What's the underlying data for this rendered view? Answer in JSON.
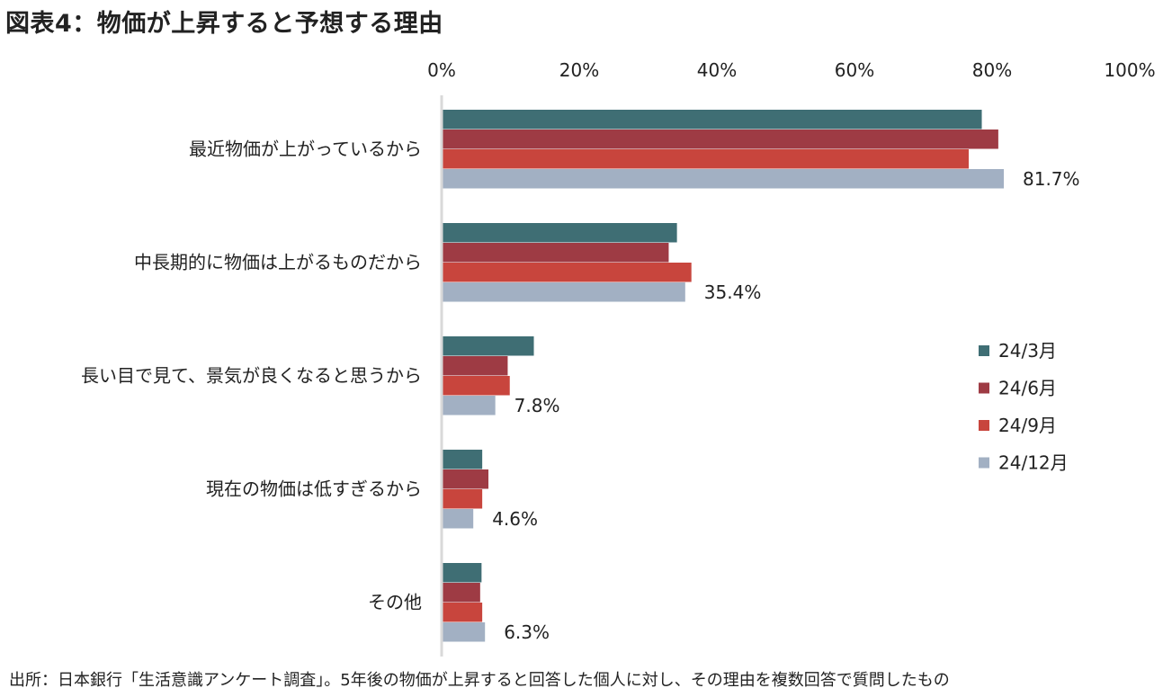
{
  "title": "図表4：物価が上昇すると予想する理由",
  "source": "出所：日本銀行「生活意識アンケート調査」。5年後の物価が上昇すると回答した個人に対し、その理由を複数回答で質問したもの",
  "chart_data": {
    "type": "bar",
    "orientation": "horizontal",
    "xlim": [
      0,
      100
    ],
    "ticks": [
      "0%",
      "20%",
      "40%",
      "60%",
      "80%",
      "100%"
    ],
    "tick_values": [
      0,
      20,
      40,
      60,
      80,
      100
    ],
    "axis_position": "top",
    "grid": false,
    "legend_position": "right",
    "categories": [
      "最近物価が上がっているから",
      "中長期的に物価は上がるものだから",
      "長い目で見て、景気が良くなると思うから",
      "現在の物価は低すぎるから",
      "その他"
    ],
    "series": [
      {
        "name": "24/3月",
        "color": "#3f6e74",
        "values": [
          78.5,
          34.2,
          13.4,
          5.9,
          5.8
        ]
      },
      {
        "name": "24/6月",
        "color": "#9e3b44",
        "values": [
          80.9,
          33.0,
          9.6,
          6.8,
          5.6
        ]
      },
      {
        "name": "24/9月",
        "color": "#c8453d",
        "values": [
          76.6,
          36.3,
          9.9,
          5.9,
          5.9
        ]
      },
      {
        "name": "24/12月",
        "color": "#a2b0c3",
        "values": [
          81.7,
          35.4,
          7.8,
          4.6,
          6.3
        ]
      }
    ],
    "data_labels": [
      "81.7%",
      "35.4%",
      "7.8%",
      "4.6%",
      "6.3%"
    ]
  }
}
